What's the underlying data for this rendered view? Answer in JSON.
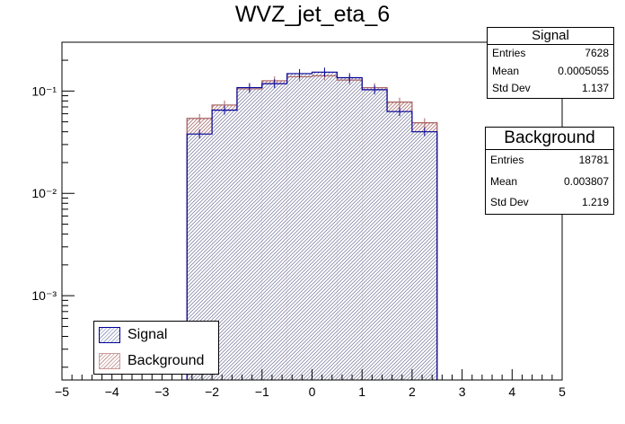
{
  "chart_data": {
    "type": "histogram",
    "title": "WVZ_jet_eta_6",
    "xlabel": "",
    "ylabel": "",
    "xlim": [
      -5,
      5
    ],
    "ylim": [
      0.00015,
      0.3
    ],
    "log_y": true,
    "bin_edges": [
      -2.5,
      -2.0,
      -1.5,
      -1.0,
      -0.5,
      0.0,
      0.5,
      1.0,
      1.5,
      2.0,
      2.5
    ],
    "x_ticks": [
      "−5",
      "−4",
      "−3",
      "−2",
      "−1",
      "0",
      "1",
      "2",
      "3",
      "4",
      "5"
    ],
    "y_ticks": [
      "10⁻¹",
      "10⁻²",
      "10⁻³"
    ],
    "series": [
      {
        "name": "Signal",
        "color": "#000099",
        "values": [
          0.038,
          0.065,
          0.108,
          0.118,
          0.148,
          0.153,
          0.135,
          0.103,
          0.063,
          0.04
        ]
      },
      {
        "name": "Background",
        "color": "#cc9999",
        "values": [
          0.054,
          0.073,
          0.105,
          0.126,
          0.138,
          0.141,
          0.128,
          0.108,
          0.078,
          0.049
        ]
      }
    ],
    "legend": {
      "position": "bottom-left",
      "entries": [
        "Signal",
        "Background"
      ]
    },
    "stats": [
      {
        "name": "Signal",
        "entries_label": "Entries",
        "entries": "7628",
        "mean_label": "Mean",
        "mean": "0.0005055",
        "std_label": "Std Dev",
        "std": "1.137"
      },
      {
        "name": "Background",
        "entries_label": "Entries",
        "entries": "18781",
        "mean_label": "Mean",
        "mean": "0.003807",
        "std_label": "Std Dev",
        "std": "1.219"
      }
    ]
  }
}
